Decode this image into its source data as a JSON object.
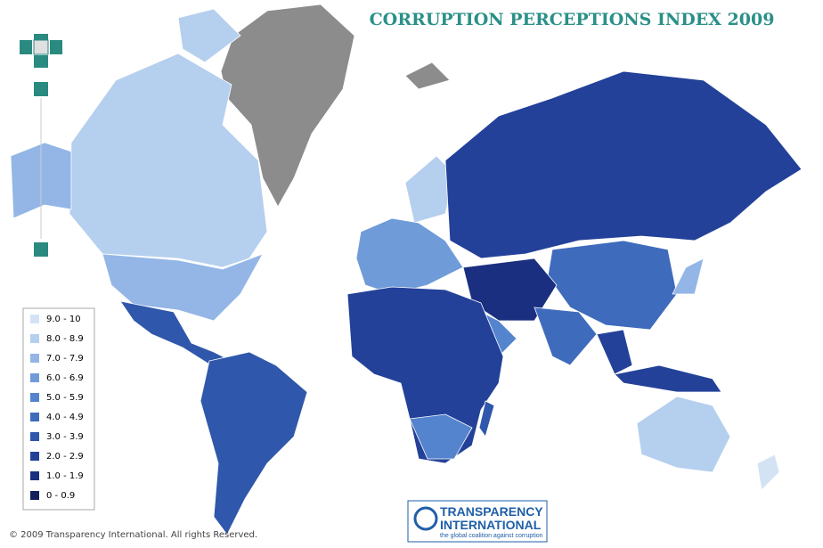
{
  "header": {
    "title": "CORRUPTION PERCEPTIONS INDEX 2009"
  },
  "legend": {
    "items": [
      {
        "label": "9.0 - 10",
        "color": "#d3e3f5"
      },
      {
        "label": "8.0 - 8.9",
        "color": "#b5cfee"
      },
      {
        "label": "7.0 - 7.9",
        "color": "#93b6e6"
      },
      {
        "label": "6.0 - 6.9",
        "color": "#709bd9"
      },
      {
        "label": "5.0 - 5.9",
        "color": "#5484cd"
      },
      {
        "label": "4.0 - 4.9",
        "color": "#3f6bbd"
      },
      {
        "label": "3.0 - 3.9",
        "color": "#2f57ab"
      },
      {
        "label": "2.0 - 2.9",
        "color": "#234199"
      },
      {
        "label": "1.0 - 1.9",
        "color": "#1b2f80"
      },
      {
        "label": "0 - 0.9",
        "color": "#13205a"
      }
    ]
  },
  "footer": {
    "copyright": "© 2009 Transparency International. All rights Reserved."
  },
  "logo": {
    "line1": "TRANSPARENCY",
    "line2": "INTERNATIONAL",
    "tagline": "the global coalition against corruption"
  }
}
